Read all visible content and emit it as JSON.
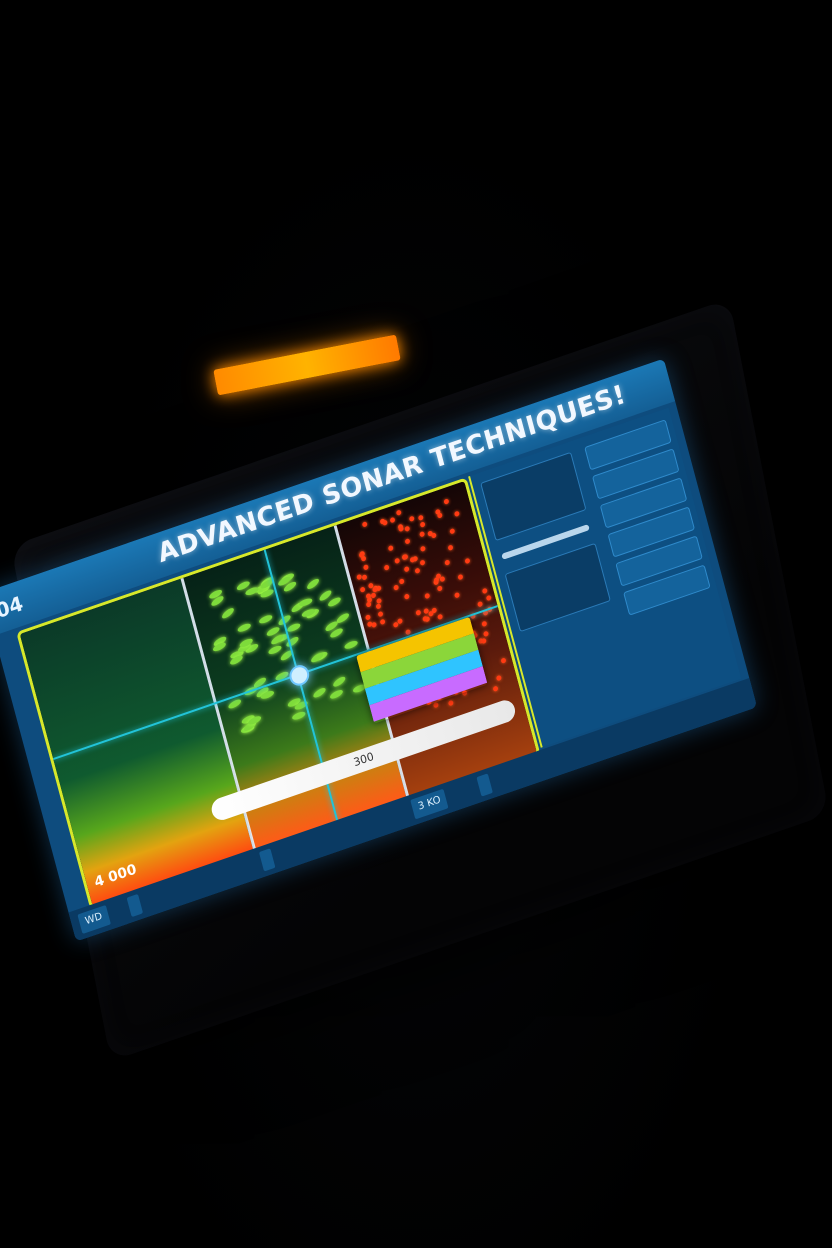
{
  "device": {
    "brand_led": "",
    "accent": "#ff9a00"
  },
  "screen": {
    "page_number": "04",
    "title": "ADVANCED SONAR TECHNIQUES!",
    "frame_color": "#d7e82a",
    "header_color": "#1b78b5"
  },
  "viewport": {
    "scale": {
      "start": "",
      "mid": "300"
    },
    "depth_label": "4 000",
    "popup_rows": [
      {
        "label": "",
        "color": "#f5c400"
      },
      {
        "label": "",
        "color": "#8bd63a"
      },
      {
        "label": "",
        "color": "#2fc4ff"
      },
      {
        "label": "",
        "color": "#c86bff"
      }
    ]
  },
  "status": {
    "chips": [
      "WD",
      "",
      "",
      "3 KO",
      ""
    ]
  },
  "side_panel": {
    "cards": [
      "",
      ""
    ],
    "footer": ""
  }
}
